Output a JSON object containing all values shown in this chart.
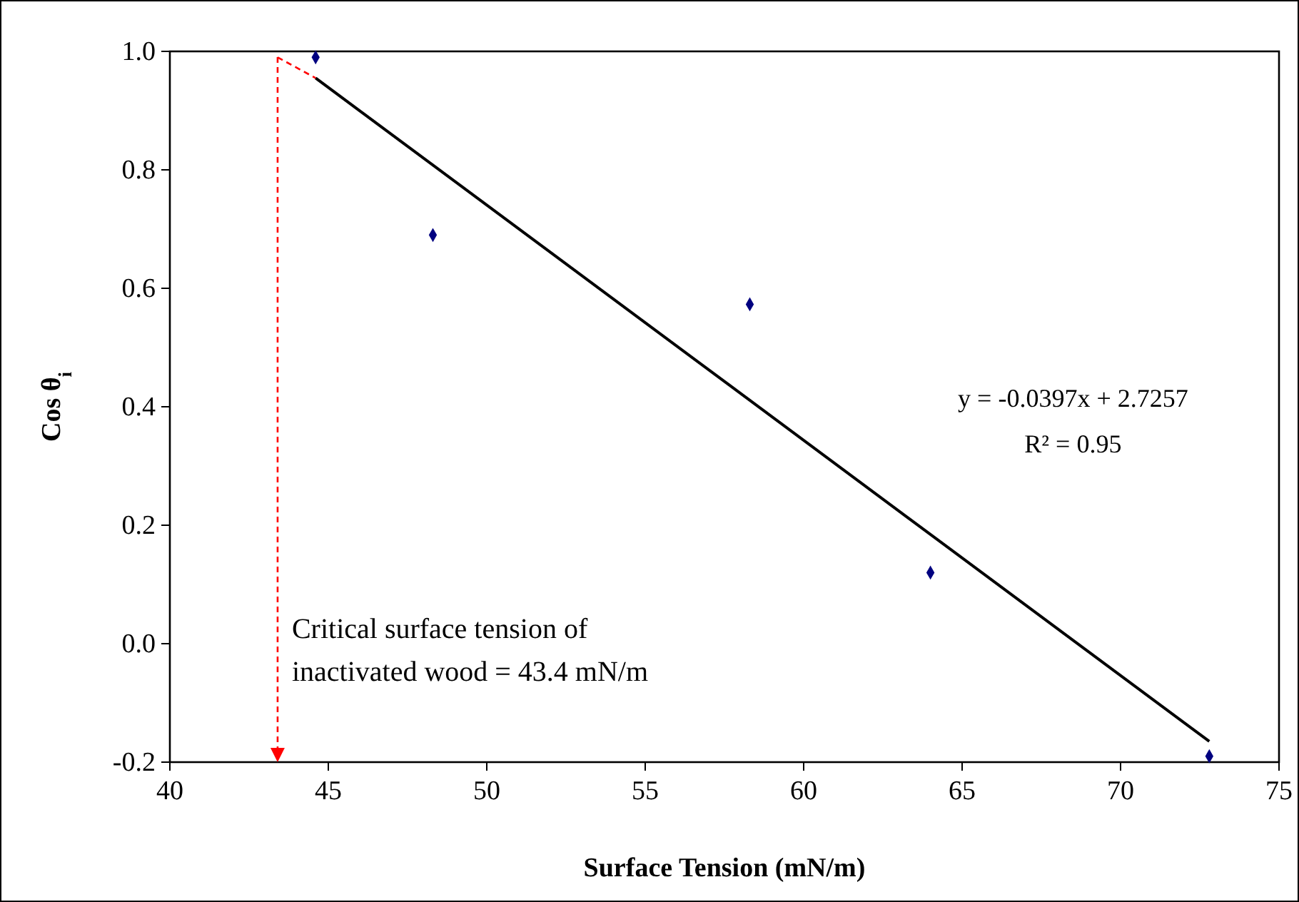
{
  "chart_data": {
    "type": "scatter",
    "xlabel": "Surface Tension (mN/m)",
    "ylabel": "Cos θ$_{i}$",
    "xlim": [
      40,
      75
    ],
    "xticks": [
      40,
      45,
      50,
      55,
      60,
      65,
      70,
      75
    ],
    "ylim": [
      -0.2,
      1.0
    ],
    "yticks": [
      {
        "value": -0.2,
        "label": "-0.2"
      },
      {
        "value": 0,
        "label": "0.0"
      },
      {
        "value": 0.2,
        "label": "0.2"
      },
      {
        "value": 0.4,
        "label": "0.4"
      },
      {
        "value": 0.6,
        "label": "0.6"
      },
      {
        "value": 0.8,
        "label": "0.8"
      },
      {
        "value": 1.0,
        "label": "1.0"
      }
    ],
    "grid": false,
    "marker": "diamond",
    "series": [
      {
        "color": "#000080",
        "x": [
          44.6,
          48.3,
          58.3,
          64.0,
          72.8
        ],
        "values": [
          0.99,
          0.69,
          0.573,
          0.12,
          -0.19
        ]
      },
      {
        "type": "line",
        "color": "#000000",
        "line_style": "solid",
        "marker": "none",
        "x": [
          44.6,
          72.8
        ],
        "values": [
          0.955,
          -0.165
        ]
      },
      {
        "type": "line",
        "color": "#ff0000",
        "line_style": "dashed",
        "marker": "none",
        "x": [
          43.4,
          44.6
        ],
        "values": [
          0.99,
          0.955
        ]
      }
    ],
    "ref_lines": [
      {
        "axis": "x",
        "value": 43.4,
        "color": "#ff0000",
        "line_style": "dashed"
      }
    ],
    "annotations": [
      "y = -0.0397x + 2.7257",
      "R² = 0.95",
      "Critical surface tension of inactivated wood = 43.4 mN/m"
    ]
  }
}
